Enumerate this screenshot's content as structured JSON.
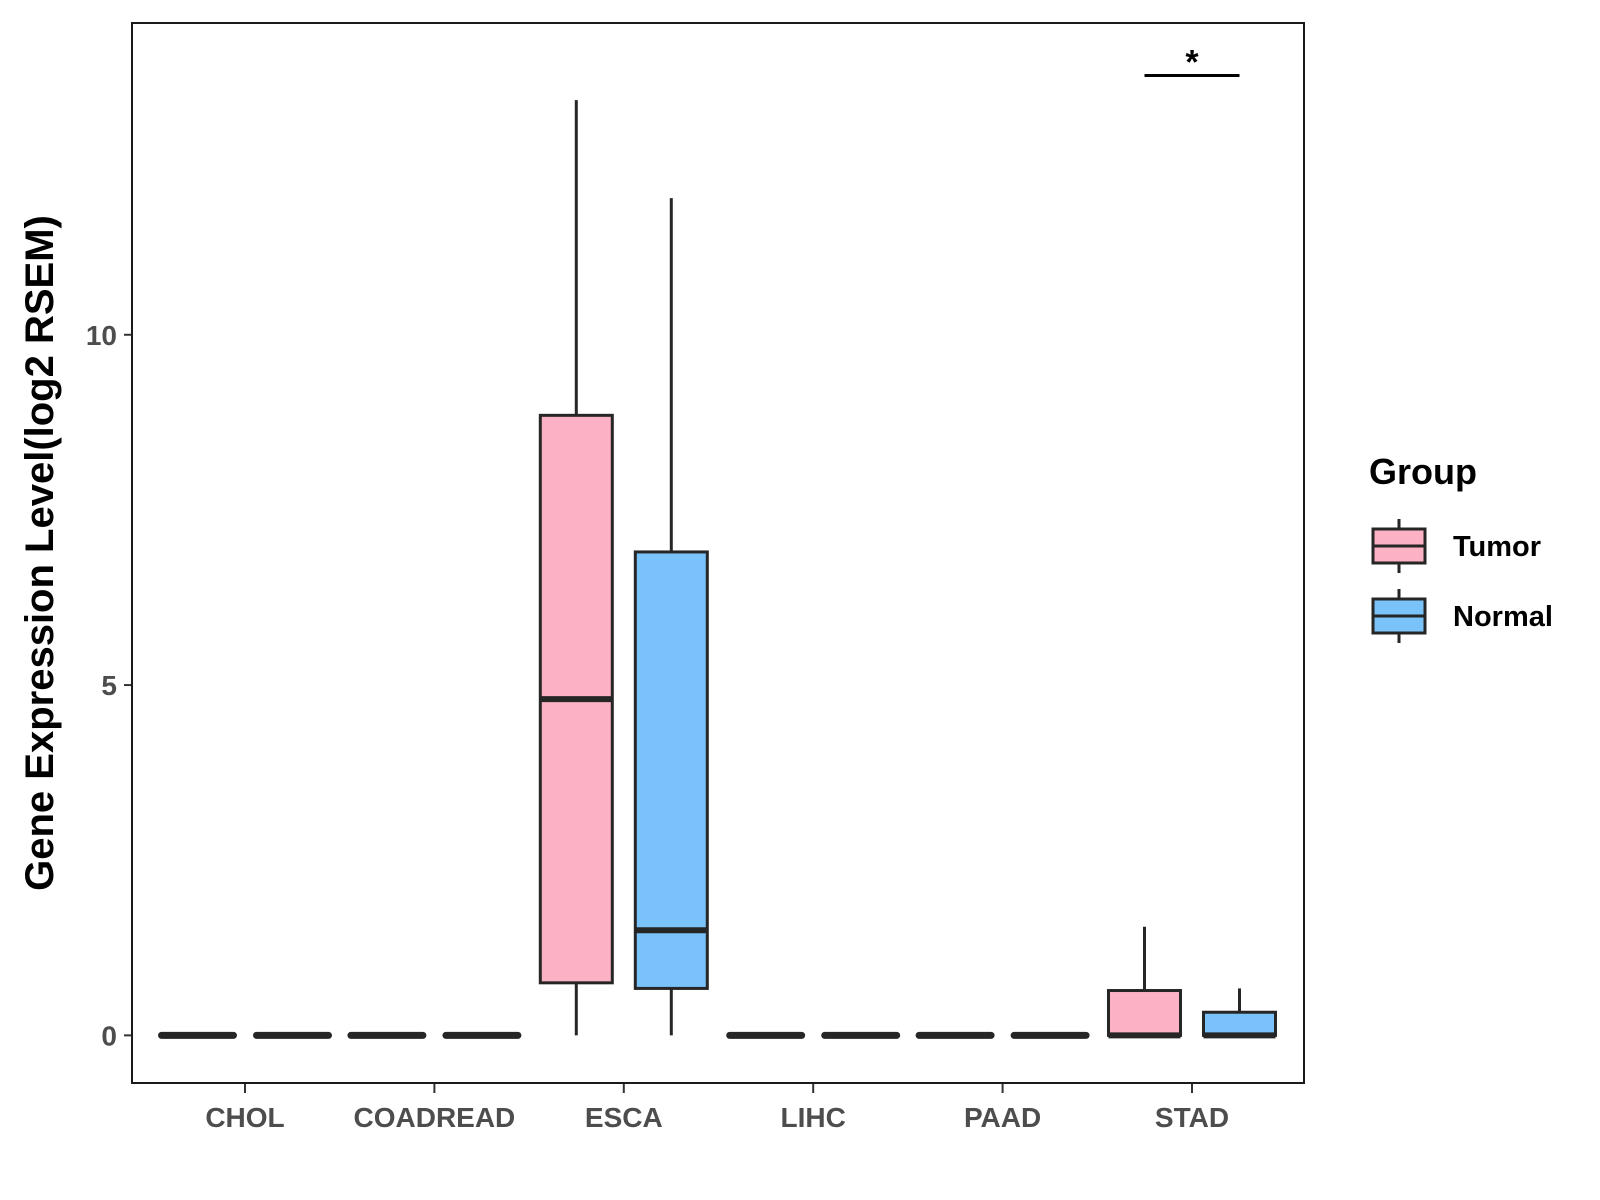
{
  "chart_data": {
    "type": "box",
    "ylabel": "Gene Expression Level(log2 RSEM)",
    "xlabel": "",
    "ylim": [
      -0.68,
      14.45
    ],
    "yticks": [
      0,
      5,
      10
    ],
    "categories": [
      "CHOL",
      "COADREAD",
      "ESCA",
      "LIHC",
      "PAAD",
      "STAD"
    ],
    "legend": {
      "title": "Group",
      "position": "right"
    },
    "series": [
      {
        "name": "Tumor",
        "color": "#FCB2C4",
        "boxes": [
          {
            "category": "CHOL",
            "min": 0,
            "q1": 0,
            "median": 0,
            "q3": 0,
            "max": 0
          },
          {
            "category": "COADREAD",
            "min": 0,
            "q1": 0,
            "median": 0,
            "q3": 0,
            "max": 0
          },
          {
            "category": "ESCA",
            "min": 0,
            "q1": 0.75,
            "median": 4.8,
            "q3": 8.85,
            "max": 13.35
          },
          {
            "category": "LIHC",
            "min": 0,
            "q1": 0,
            "median": 0,
            "q3": 0,
            "max": 0
          },
          {
            "category": "PAAD",
            "min": 0,
            "q1": 0,
            "median": 0,
            "q3": 0,
            "max": 0
          },
          {
            "category": "STAD",
            "min": 0,
            "q1": 0,
            "median": 0,
            "q3": 0.64,
            "max": 1.55
          }
        ]
      },
      {
        "name": "Normal",
        "color": "#79C2FA",
        "boxes": [
          {
            "category": "CHOL",
            "min": 0,
            "q1": 0,
            "median": 0,
            "q3": 0,
            "max": 0
          },
          {
            "category": "COADREAD",
            "min": 0,
            "q1": 0,
            "median": 0,
            "q3": 0,
            "max": 0
          },
          {
            "category": "ESCA",
            "min": 0,
            "q1": 0.67,
            "median": 1.5,
            "q3": 6.9,
            "max": 11.95
          },
          {
            "category": "LIHC",
            "min": 0,
            "q1": 0,
            "median": 0,
            "q3": 0,
            "max": 0
          },
          {
            "category": "PAAD",
            "min": 0,
            "q1": 0,
            "median": 0,
            "q3": 0,
            "max": 0
          },
          {
            "category": "STAD",
            "min": 0,
            "q1": 0,
            "median": 0,
            "q3": 0.33,
            "max": 0.67
          }
        ]
      }
    ],
    "annotations": [
      {
        "category": "STAD",
        "text": "*",
        "y": 13.7
      }
    ]
  }
}
